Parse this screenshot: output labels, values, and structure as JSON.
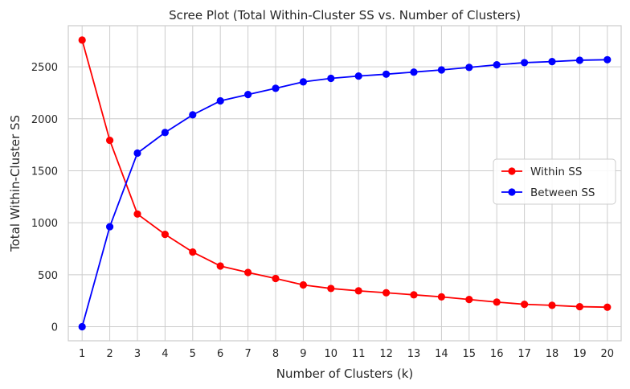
{
  "chart_data": {
    "type": "line",
    "title": "Scree Plot (Total Within-Cluster SS vs. Number of Clusters)",
    "xlabel": "Number of Clusters (k)",
    "ylabel": "Total Within-Cluster SS",
    "x": [
      1,
      2,
      3,
      4,
      5,
      6,
      7,
      8,
      9,
      10,
      11,
      12,
      13,
      14,
      15,
      16,
      17,
      18,
      19,
      20
    ],
    "xlim": [
      0.5,
      20.5
    ],
    "ylim": [
      -135,
      2895
    ],
    "xticks": [
      "1",
      "2",
      "3",
      "4",
      "5",
      "6",
      "7",
      "8",
      "9",
      "10",
      "11",
      "12",
      "13",
      "14",
      "15",
      "16",
      "17",
      "18",
      "19",
      "20"
    ],
    "yticks": [
      0,
      500,
      1000,
      1500,
      2000,
      2500
    ],
    "ytick_labels": [
      "0",
      "500",
      "1000",
      "1500",
      "2000",
      "2500"
    ],
    "grid": true,
    "legend_position": "center-right",
    "series": [
      {
        "name": "Within SS",
        "color": "#ff0000",
        "marker": "circle",
        "values": [
          2757,
          1793,
          1084,
          888,
          718,
          584,
          522,
          464,
          402,
          368,
          345,
          327,
          307,
          287,
          262,
          237,
          216,
          206,
          193,
          188
        ]
      },
      {
        "name": "Between SS",
        "color": "#0000ff",
        "marker": "circle",
        "values": [
          0,
          962,
          1670,
          1868,
          2038,
          2172,
          2233,
          2293,
          2355,
          2389,
          2411,
          2429,
          2449,
          2470,
          2494,
          2519,
          2540,
          2550,
          2563,
          2568
        ]
      }
    ]
  }
}
